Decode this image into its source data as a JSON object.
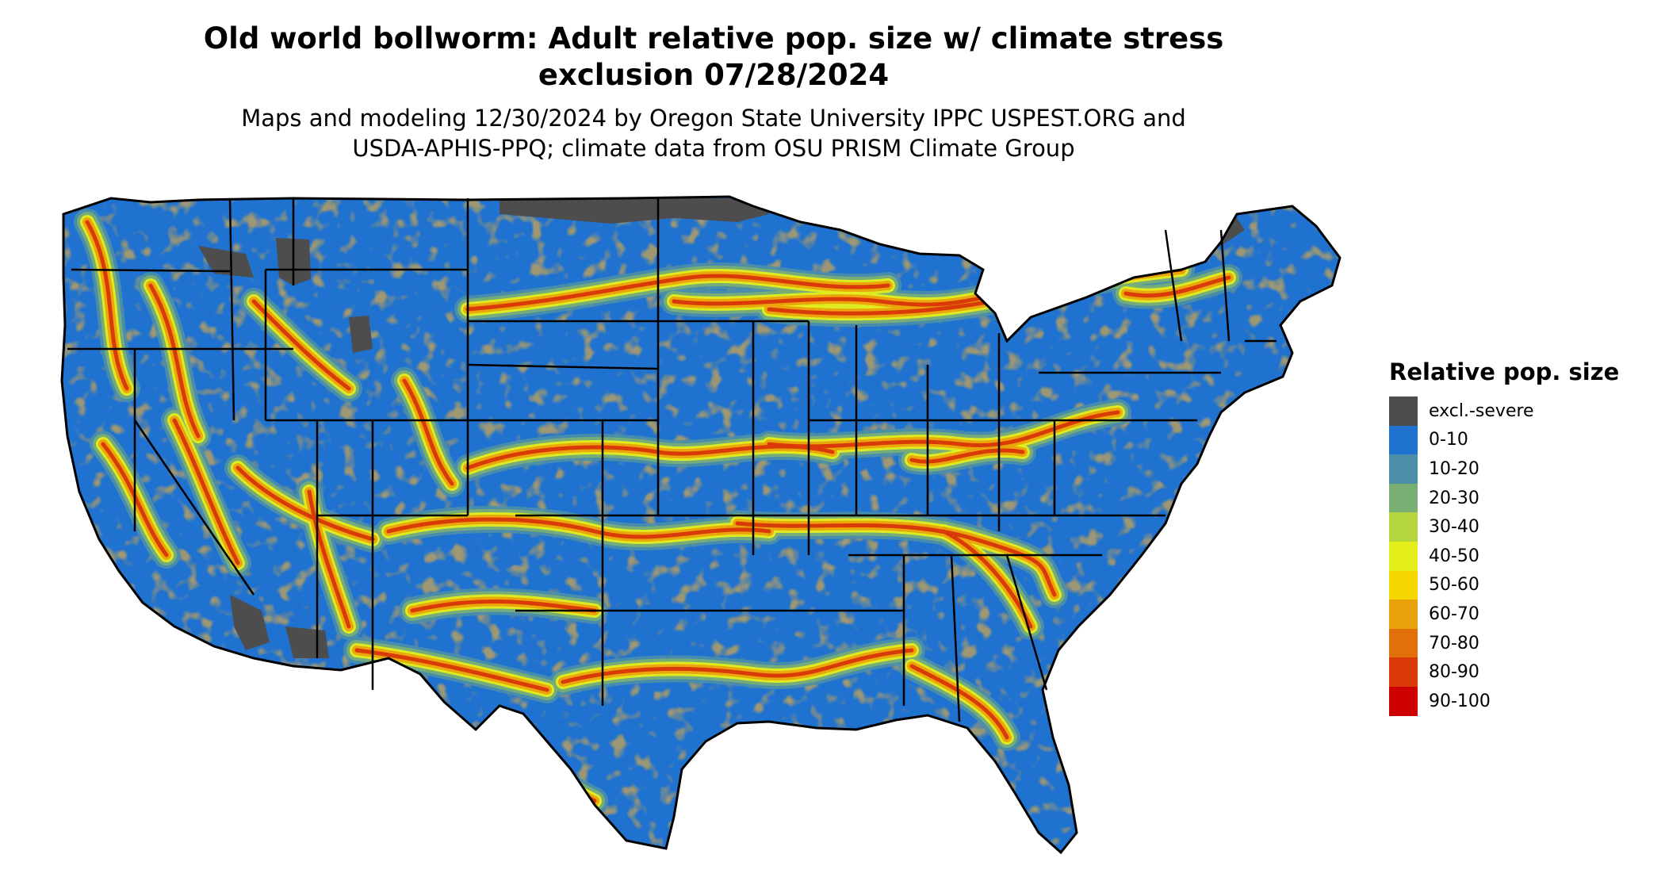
{
  "title_line1": "Old world bollworm: Adult relative pop. size w/ climate stress",
  "title_line2": "exclusion 07/28/2024",
  "subtitle_line1": "Maps and modeling 12/30/2024 by Oregon State University IPPC USPEST.ORG and",
  "subtitle_line2": "USDA-APHIS-PPQ; climate data from OSU PRISM Climate Group",
  "legend": {
    "title": "Relative pop. size",
    "items": [
      {
        "label": "excl.-severe",
        "color": "#4d4d4d"
      },
      {
        "label": "0-10",
        "color": "#1f72cf"
      },
      {
        "label": "10-20",
        "color": "#4b8fa8"
      },
      {
        "label": "20-30",
        "color": "#7aaf73"
      },
      {
        "label": "30-40",
        "color": "#b5d63e"
      },
      {
        "label": "40-50",
        "color": "#e4ee1b"
      },
      {
        "label": "50-60",
        "color": "#f5d800"
      },
      {
        "label": "60-70",
        "color": "#eaa20a"
      },
      {
        "label": "70-80",
        "color": "#e1700a"
      },
      {
        "label": "80-90",
        "color": "#d93a08"
      },
      {
        "label": "90-100",
        "color": "#cc0000"
      }
    ]
  }
}
